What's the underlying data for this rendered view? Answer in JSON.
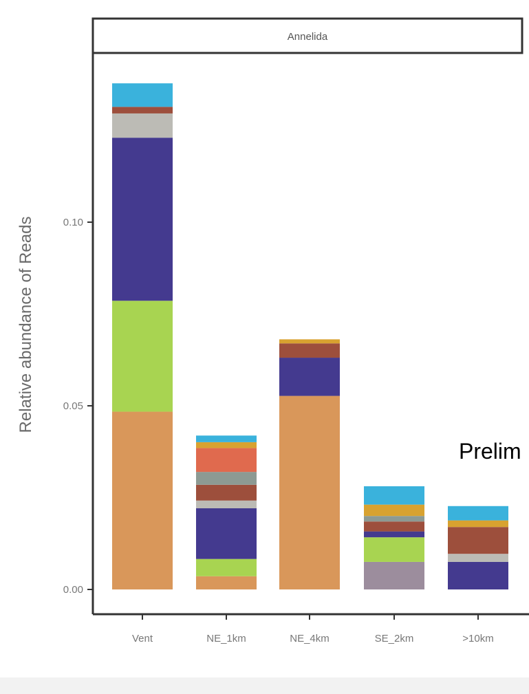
{
  "overlay_text": "Prelim",
  "chart_data": {
    "type": "bar",
    "stacked": true,
    "facet": "Annelida",
    "ylabel": "Relative abundance of Reads",
    "xlabel": "",
    "ylim": [
      0,
      0.15
    ],
    "yticks": [
      0.0,
      0.05,
      0.1
    ],
    "ytick_labels": [
      "0.00",
      "0.05",
      "0.10"
    ],
    "categories": [
      "Vent",
      "NE_1km",
      "NE_4km",
      "SE_2km",
      ">10km"
    ],
    "grid": false,
    "series": [
      {
        "color": "#d9975a",
        "values": [
          0.0484,
          0.0036,
          0.0527,
          0.0,
          0.0
        ]
      },
      {
        "color": "#9c8d9d",
        "values": [
          0.0,
          0.0,
          0.0,
          0.0075,
          0.0
        ]
      },
      {
        "color": "#a8d451",
        "values": [
          0.0302,
          0.0047,
          0.0,
          0.0067,
          0.0
        ]
      },
      {
        "color": "#443a8f",
        "values": [
          0.0444,
          0.0138,
          0.0104,
          0.0016,
          0.0075
        ]
      },
      {
        "color": "#bcbbb5",
        "values": [
          0.0066,
          0.0021,
          0.0,
          0.0,
          0.0022
        ]
      },
      {
        "color": "#9d4f3c",
        "values": [
          0.0018,
          0.0043,
          0.0039,
          0.0027,
          0.0073
        ]
      },
      {
        "color": "#8d9a93",
        "values": [
          0.0,
          0.0035,
          0.0,
          0.0015,
          0.0
        ]
      },
      {
        "color": "#e06a4e",
        "values": [
          0.0,
          0.0065,
          0.0,
          0.0,
          0.0
        ]
      },
      {
        "color": "#d8a230",
        "values": [
          0.0,
          0.0016,
          0.0011,
          0.0031,
          0.0018
        ]
      },
      {
        "color": "#3ab2dc",
        "values": [
          0.0064,
          0.0018,
          0.0,
          0.005,
          0.0039
        ]
      }
    ]
  }
}
